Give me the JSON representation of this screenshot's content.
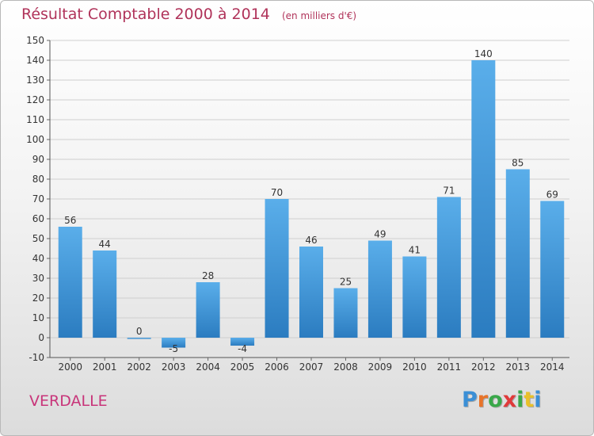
{
  "header": {
    "title": "Résultat Comptable 2000 à 2014",
    "unit": "(en milliers d'€)"
  },
  "footer": {
    "commune": "VERDALLE",
    "logo_letters": [
      "P",
      "r",
      "o",
      "x",
      "i",
      "t",
      "i"
    ],
    "logo_colors": [
      "#3a8fd6",
      "#e8742a",
      "#3aa84a",
      "#e03a3a",
      "#3aa84a",
      "#e8c02a",
      "#3a8fd6"
    ]
  },
  "chart_data": {
    "type": "bar",
    "categories": [
      "2000",
      "2001",
      "2002",
      "2003",
      "2004",
      "2005",
      "2006",
      "2007",
      "2008",
      "2009",
      "2010",
      "2011",
      "2012",
      "2013",
      "2014"
    ],
    "values": [
      56,
      44,
      0,
      -5,
      28,
      -4,
      70,
      46,
      25,
      49,
      41,
      71,
      140,
      85,
      69
    ],
    "ylim": [
      -10,
      150
    ],
    "yticks": [
      -10,
      0,
      10,
      20,
      30,
      40,
      50,
      60,
      70,
      80,
      90,
      100,
      110,
      120,
      130,
      140,
      150
    ],
    "grid": true,
    "bar_color_top": "#5aaeea",
    "bar_color_bottom": "#2b7cc0"
  }
}
